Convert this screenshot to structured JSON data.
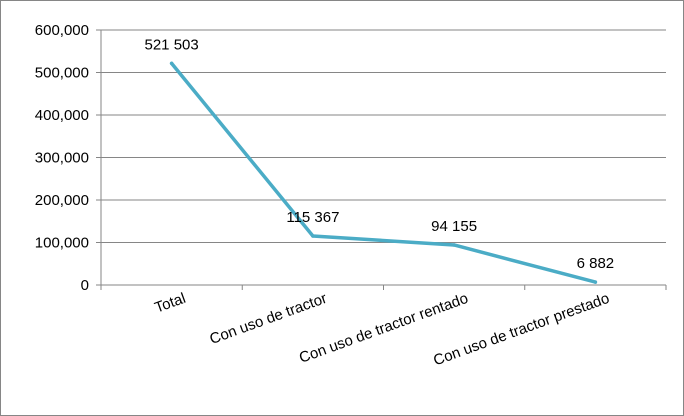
{
  "chart_data": {
    "type": "line",
    "title": "",
    "xlabel": "",
    "ylabel": "",
    "categories": [
      "Total",
      "Con uso de tractor",
      "Con uso de tractor rentado",
      "Con uso de tractor prestado"
    ],
    "series": [
      {
        "values": [
          521503,
          115367,
          94155,
          6882
        ],
        "data_labels": [
          "521 503",
          "115 367",
          "94 155",
          "6 882"
        ],
        "color": "#4BACC6"
      }
    ],
    "ylim": [
      0,
      600000
    ],
    "yticks": [
      0,
      100000,
      200000,
      300000,
      400000,
      500000,
      600000
    ],
    "ytick_labels": [
      "0",
      "100,000",
      "200,000",
      "300,000",
      "400,000",
      "500,000",
      "600,000"
    ],
    "grid": true,
    "legend": "none",
    "category_label_rotation_deg": -20
  }
}
